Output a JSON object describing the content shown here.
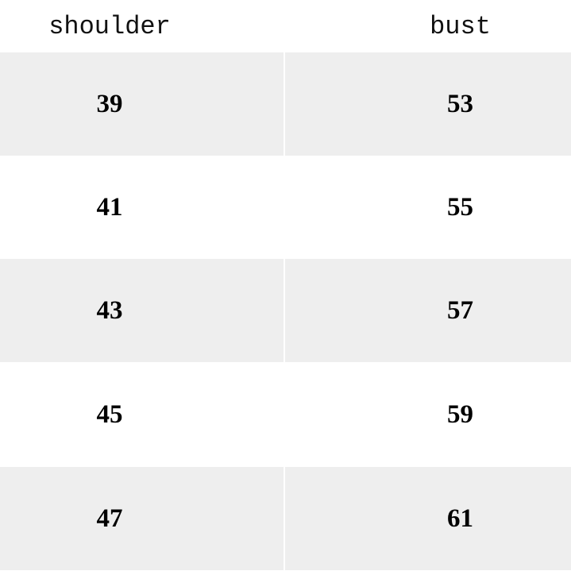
{
  "table": {
    "headers": [
      "shoulder",
      "bust"
    ],
    "rows": [
      [
        "39",
        "53"
      ],
      [
        "41",
        "55"
      ],
      [
        "43",
        "57"
      ],
      [
        "45",
        "59"
      ],
      [
        "47",
        "61"
      ]
    ],
    "stripe_color": "#eeeeee"
  }
}
